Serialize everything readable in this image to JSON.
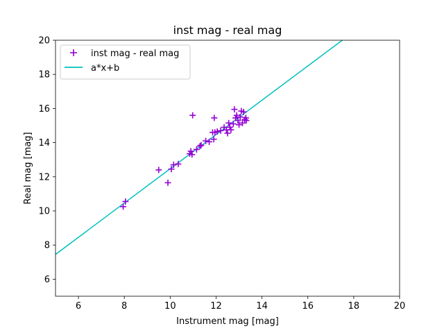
{
  "chart_data": {
    "type": "scatter",
    "title": "inst mag - real mag",
    "xlabel": "Instrument mag [mag]",
    "ylabel": "Real mag [mag]",
    "xlim": [
      5,
      20
    ],
    "ylim": [
      5,
      20
    ],
    "xticks": [
      6,
      8,
      10,
      12,
      14,
      16,
      18,
      20
    ],
    "yticks": [
      6,
      8,
      10,
      12,
      14,
      16,
      18,
      20
    ],
    "grid": false,
    "legend_position": "top-left",
    "series": [
      {
        "name": "inst mag - real mag",
        "kind": "scatter",
        "marker": "plus",
        "color": "#9400D3",
        "points": [
          [
            7.95,
            10.25
          ],
          [
            8.05,
            10.55
          ],
          [
            9.5,
            12.4
          ],
          [
            9.9,
            11.65
          ],
          [
            10.05,
            12.45
          ],
          [
            10.15,
            12.7
          ],
          [
            10.35,
            12.75
          ],
          [
            10.85,
            13.35
          ],
          [
            10.9,
            13.5
          ],
          [
            10.95,
            13.3
          ],
          [
            10.98,
            15.6
          ],
          [
            11.15,
            13.6
          ],
          [
            11.3,
            13.8
          ],
          [
            11.35,
            13.85
          ],
          [
            11.55,
            14.1
          ],
          [
            11.7,
            14.05
          ],
          [
            11.85,
            14.6
          ],
          [
            11.9,
            14.2
          ],
          [
            11.92,
            15.45
          ],
          [
            11.95,
            14.6
          ],
          [
            12.05,
            14.65
          ],
          [
            12.2,
            14.7
          ],
          [
            12.35,
            14.9
          ],
          [
            12.45,
            14.75
          ],
          [
            12.5,
            14.55
          ],
          [
            12.55,
            15.15
          ],
          [
            12.6,
            14.9
          ],
          [
            12.65,
            14.75
          ],
          [
            12.75,
            15.1
          ],
          [
            12.8,
            15.95
          ],
          [
            12.85,
            15.45
          ],
          [
            12.9,
            15.6
          ],
          [
            12.95,
            15.3
          ],
          [
            13.0,
            15.05
          ],
          [
            13.05,
            15.5
          ],
          [
            13.1,
            15.85
          ],
          [
            13.15,
            15.15
          ],
          [
            13.2,
            15.8
          ],
          [
            13.25,
            15.35
          ],
          [
            13.3,
            15.45
          ],
          [
            13.32,
            15.3
          ]
        ]
      },
      {
        "name": "a*x+b",
        "kind": "line",
        "color": "#00BFBF",
        "points": [
          [
            5,
            7.45
          ],
          [
            17.5,
            20.0
          ]
        ]
      }
    ]
  }
}
